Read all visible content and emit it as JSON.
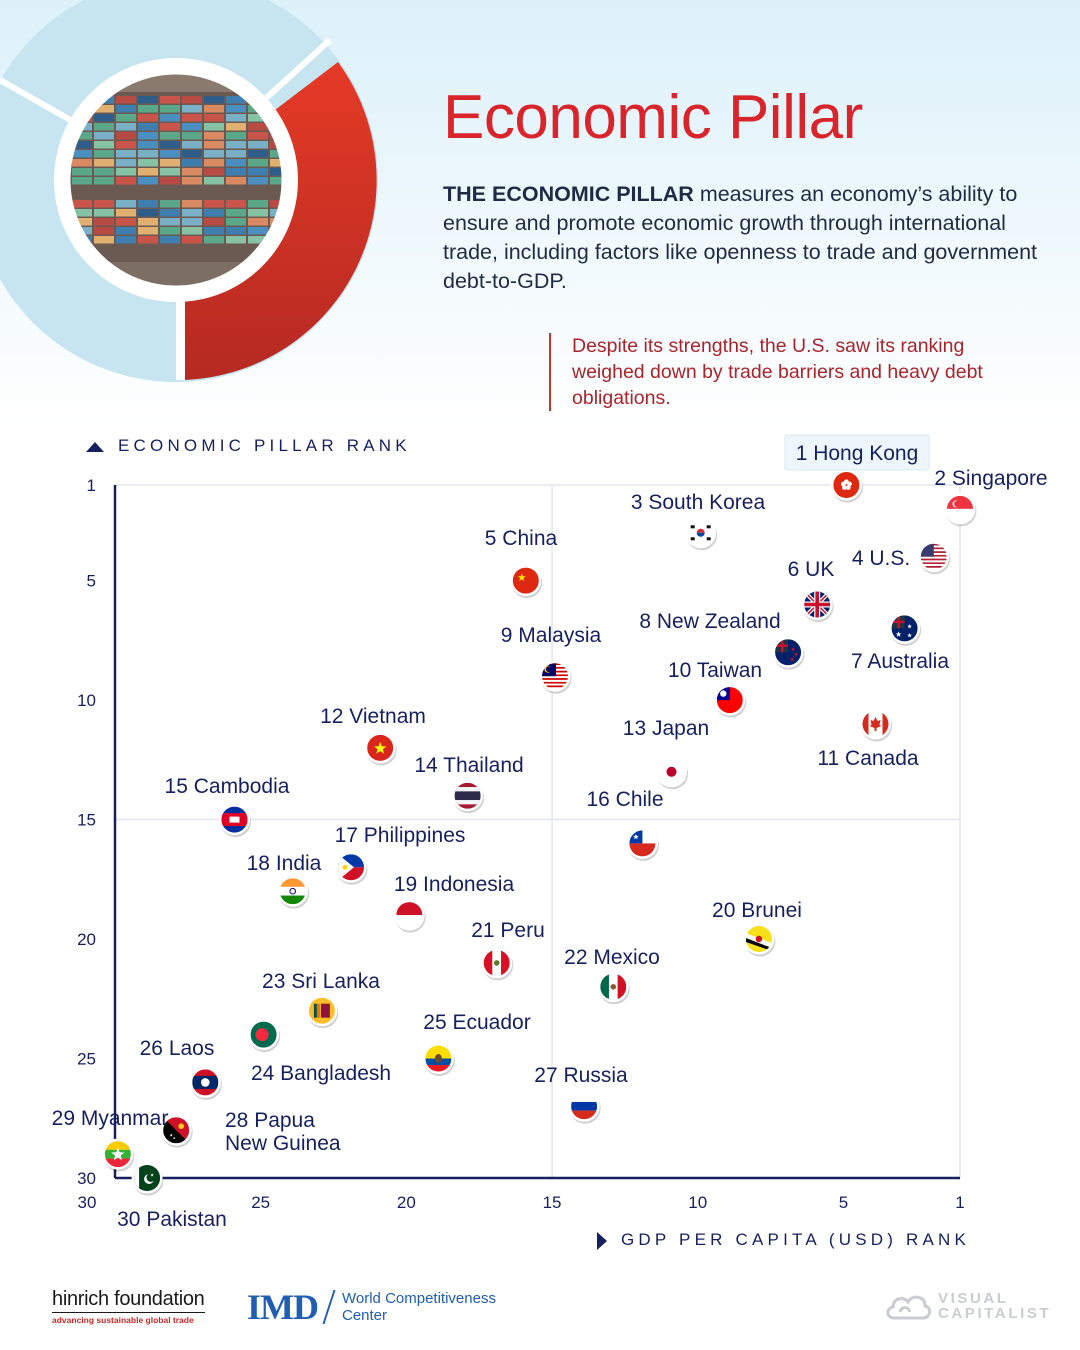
{
  "header": {
    "title": "Economic Pillar",
    "description_lead": "THE ECONOMIC PILLAR",
    "description_rest": " measures an economy’s ability to ensure and promote economic growth through international trade, including factors like openness to trade and government debt-to-GDP.",
    "callout": "Despite its strengths, the U.S. saw its ranking weighed down by trade barriers and heavy debt obligations."
  },
  "colors": {
    "accent_red": "#d8242a",
    "navy": "#16205e",
    "grid": "#e3e6ee",
    "light_blue": "#c7e6f2"
  },
  "chart_data": {
    "type": "scatter",
    "title": "Economic Pillar",
    "xlabel": "GDP PER CAPITA (USD) RANK",
    "ylabel": "ECONOMIC PILLAR RANK",
    "xlim": [
      30,
      1
    ],
    "ylim": [
      30,
      1
    ],
    "x_ticks": [
      30,
      25,
      20,
      15,
      10,
      5,
      1
    ],
    "y_ticks": [
      1,
      5,
      10,
      15,
      20,
      25,
      30
    ],
    "grid": true,
    "points": [
      {
        "rank": 1,
        "name": "Hong Kong",
        "label": "1 Hong Kong",
        "x": 4.9,
        "y": 1.0,
        "highlight": true,
        "flag": "hong-kong"
      },
      {
        "rank": 2,
        "name": "Singapore",
        "label": "2 Singapore",
        "x": 1.0,
        "y": 2.0,
        "flag": "singapore"
      },
      {
        "rank": 3,
        "name": "South Korea",
        "label": "3 South Korea",
        "x": 9.9,
        "y": 3.0,
        "flag": "south-korea"
      },
      {
        "rank": 4,
        "name": "U.S.",
        "label": "4 U.S.",
        "x": 1.9,
        "y": 4.0,
        "flag": "usa"
      },
      {
        "rank": 5,
        "name": "China",
        "label": "5 China",
        "x": 15.9,
        "y": 5.0,
        "flag": "china"
      },
      {
        "rank": 6,
        "name": "UK",
        "label": "6 UK",
        "x": 5.9,
        "y": 6.0,
        "flag": "uk"
      },
      {
        "rank": 7,
        "name": "Australia",
        "label": "7 Australia",
        "x": 2.9,
        "y": 7.0,
        "flag": "australia"
      },
      {
        "rank": 8,
        "name": "New Zealand",
        "label": "8 New Zealand",
        "x": 6.9,
        "y": 8.0,
        "flag": "new-zealand"
      },
      {
        "rank": 9,
        "name": "Malaysia",
        "label": "9 Malaysia",
        "x": 14.9,
        "y": 9.0,
        "flag": "malaysia"
      },
      {
        "rank": 10,
        "name": "Taiwan",
        "label": "10 Taiwan",
        "x": 8.9,
        "y": 10.0,
        "flag": "taiwan"
      },
      {
        "rank": 11,
        "name": "Canada",
        "label": "11 Canada",
        "x": 3.9,
        "y": 11.0,
        "flag": "canada"
      },
      {
        "rank": 12,
        "name": "Vietnam",
        "label": "12 Vietnam",
        "x": 20.9,
        "y": 12.0,
        "flag": "vietnam"
      },
      {
        "rank": 13,
        "name": "Japan",
        "label": "13 Japan",
        "x": 10.9,
        "y": 13.0,
        "flag": "japan"
      },
      {
        "rank": 14,
        "name": "Thailand",
        "label": "14 Thailand",
        "x": 17.9,
        "y": 14.0,
        "flag": "thailand"
      },
      {
        "rank": 15,
        "name": "Cambodia",
        "label": "15 Cambodia",
        "x": 25.9,
        "y": 15.0,
        "flag": "cambodia"
      },
      {
        "rank": 16,
        "name": "Chile",
        "label": "16 Chile",
        "x": 11.9,
        "y": 16.0,
        "flag": "chile"
      },
      {
        "rank": 17,
        "name": "Philippines",
        "label": "17 Philippines",
        "x": 21.9,
        "y": 17.0,
        "flag": "philippines"
      },
      {
        "rank": 18,
        "name": "India",
        "label": "18 India",
        "x": 23.9,
        "y": 18.0,
        "flag": "india"
      },
      {
        "rank": 19,
        "name": "Indonesia",
        "label": "19 Indonesia",
        "x": 19.9,
        "y": 19.0,
        "flag": "indonesia"
      },
      {
        "rank": 20,
        "name": "Brunei",
        "label": "20 Brunei",
        "x": 7.9,
        "y": 20.0,
        "flag": "brunei"
      },
      {
        "rank": 21,
        "name": "Peru",
        "label": "21 Peru",
        "x": 16.9,
        "y": 21.0,
        "flag": "peru"
      },
      {
        "rank": 22,
        "name": "Mexico",
        "label": "22 Mexico",
        "x": 12.9,
        "y": 22.0,
        "flag": "mexico"
      },
      {
        "rank": 23,
        "name": "Sri Lanka",
        "label": "23 Sri Lanka",
        "x": 22.9,
        "y": 23.0,
        "flag": "sri-lanka"
      },
      {
        "rank": 24,
        "name": "Bangladesh",
        "label": "24 Bangladesh",
        "x": 24.9,
        "y": 24.0,
        "flag": "bangladesh"
      },
      {
        "rank": 25,
        "name": "Ecuador",
        "label": "25 Ecuador",
        "x": 18.9,
        "y": 25.0,
        "flag": "ecuador"
      },
      {
        "rank": 26,
        "name": "Laos",
        "label": "26 Laos",
        "x": 26.9,
        "y": 26.0,
        "flag": "laos"
      },
      {
        "rank": 27,
        "name": "Russia",
        "label": "27 Russia",
        "x": 13.9,
        "y": 27.0,
        "flag": "russia"
      },
      {
        "rank": 28,
        "name": "Papua New Guinea",
        "label": "28 Papua",
        "label2": "New Guinea",
        "x": 27.9,
        "y": 28.0,
        "flag": "png"
      },
      {
        "rank": 29,
        "name": "Myanmar",
        "label": "29 Myanmar",
        "x": 29.9,
        "y": 29.0,
        "flag": "myanmar"
      },
      {
        "rank": 30,
        "name": "Pakistan",
        "label": "30 Pakistan",
        "x": 28.9,
        "y": 30.0,
        "flag": "pakistan"
      }
    ]
  },
  "footer": {
    "hinrich_name": "hinrich foundation",
    "hinrich_tagline": "advancing sustainable global trade",
    "imd_logo": "IMD",
    "imd_text_line1": "World Competitiveness",
    "imd_text_line2": "Center",
    "vc_line1": "VISUAL",
    "vc_line2": "CAPITALIST"
  }
}
